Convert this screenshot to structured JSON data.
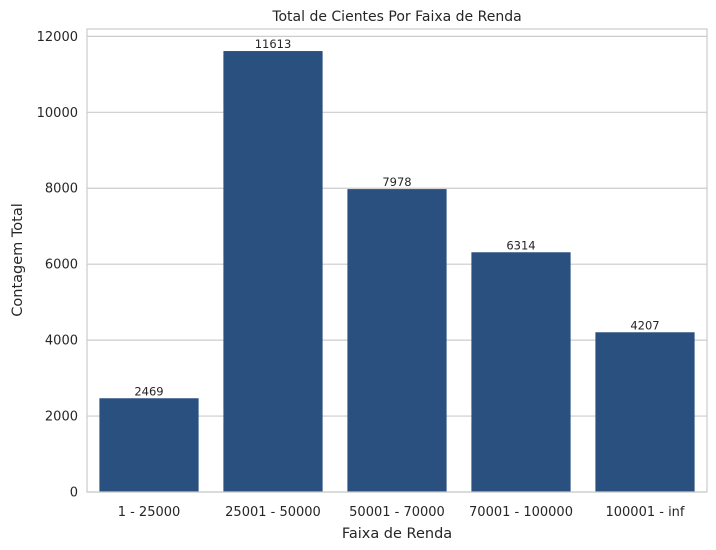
{
  "chart_data": {
    "type": "bar",
    "title": "Total de Cientes Por Faixa de Renda",
    "xlabel": "Faixa de Renda",
    "ylabel": "Contagem Total",
    "categories": [
      "1 - 25000",
      "25001 - 50000",
      "50001 - 70000",
      "70001 - 100000",
      "100001 - inf"
    ],
    "values": [
      2469,
      11613,
      7978,
      6314,
      4207
    ],
    "value_labels": [
      "2469",
      "11613",
      "7978",
      "6314",
      "4207"
    ],
    "yticks": [
      0,
      2000,
      4000,
      6000,
      8000,
      10000,
      12000
    ],
    "ytick_labels": [
      "0",
      "2000",
      "4000",
      "6000",
      "8000",
      "10000",
      "12000"
    ],
    "ylim": [
      0,
      12194
    ],
    "grid": "horizontal",
    "bar_color": "#2a5080"
  }
}
